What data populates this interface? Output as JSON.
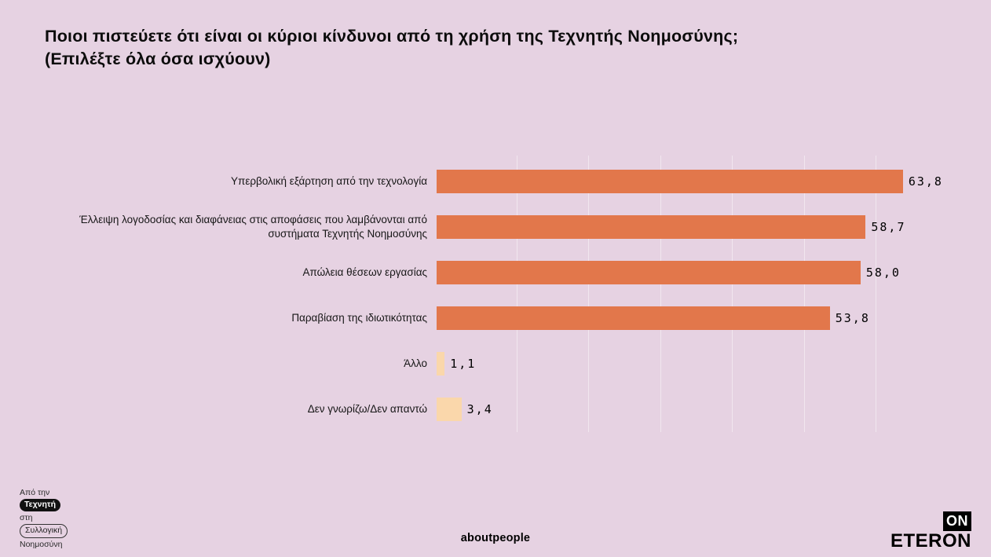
{
  "colors": {
    "background": "#e6d2e2",
    "bar_main": "#e2774b",
    "bar_light": "#fad7ab",
    "gridline": "rgba(255,255,255,0.45)",
    "text": "#111111"
  },
  "title": {
    "line1": "Ποιοι πιστεύετε ότι είναι οι κύριοι κίνδυνοι από τη χρήση της Τεχνητής Νοημοσύνης;",
    "line2": "(Επιλέξτε όλα όσα ισχύουν)"
  },
  "chart_data": {
    "type": "bar",
    "orientation": "horizontal",
    "title": "Ποιοι πιστεύετε ότι είναι οι κύριοι κίνδυνοι από τη χρήση της Τεχνητής Νοημοσύνης; (Επιλέξτε όλα όσα ισχύουν)",
    "categories": [
      "Υπερβολική εξάρτηση από την τεχνολογία",
      "Έλλειψη λογοδοσίας και διαφάνειας στις αποφάσεις που λαμβάνονται από συστήματα Τεχνητής Νοημοσύνης",
      "Απώλεια θέσεων εργασίας",
      "Παραβίαση της ιδιωτικότητας",
      "Άλλο",
      "Δεν γνωρίζω/Δεν απαντώ"
    ],
    "values": [
      63.8,
      58.7,
      58.0,
      53.8,
      1.1,
      3.4
    ],
    "value_labels": [
      "63,8",
      "58,7",
      "58,0",
      "53,8",
      "1,1",
      "3,4"
    ],
    "bar_palette": [
      "main",
      "main",
      "main",
      "main",
      "light",
      "light"
    ],
    "xlim": [
      0,
      65
    ],
    "gridline_ticks": [
      10,
      20,
      30,
      40,
      50,
      60
    ],
    "grid": true,
    "legend": false
  },
  "footer": {
    "brand_left": {
      "line1": "Από την",
      "pill1": "Τεχνητή",
      "line2": "στη",
      "pill2": "Συλλογική",
      "line3": "Νοημοσύνη"
    },
    "center": "aboutpeople",
    "logo": {
      "on": "ON",
      "name": "ETERON"
    }
  }
}
